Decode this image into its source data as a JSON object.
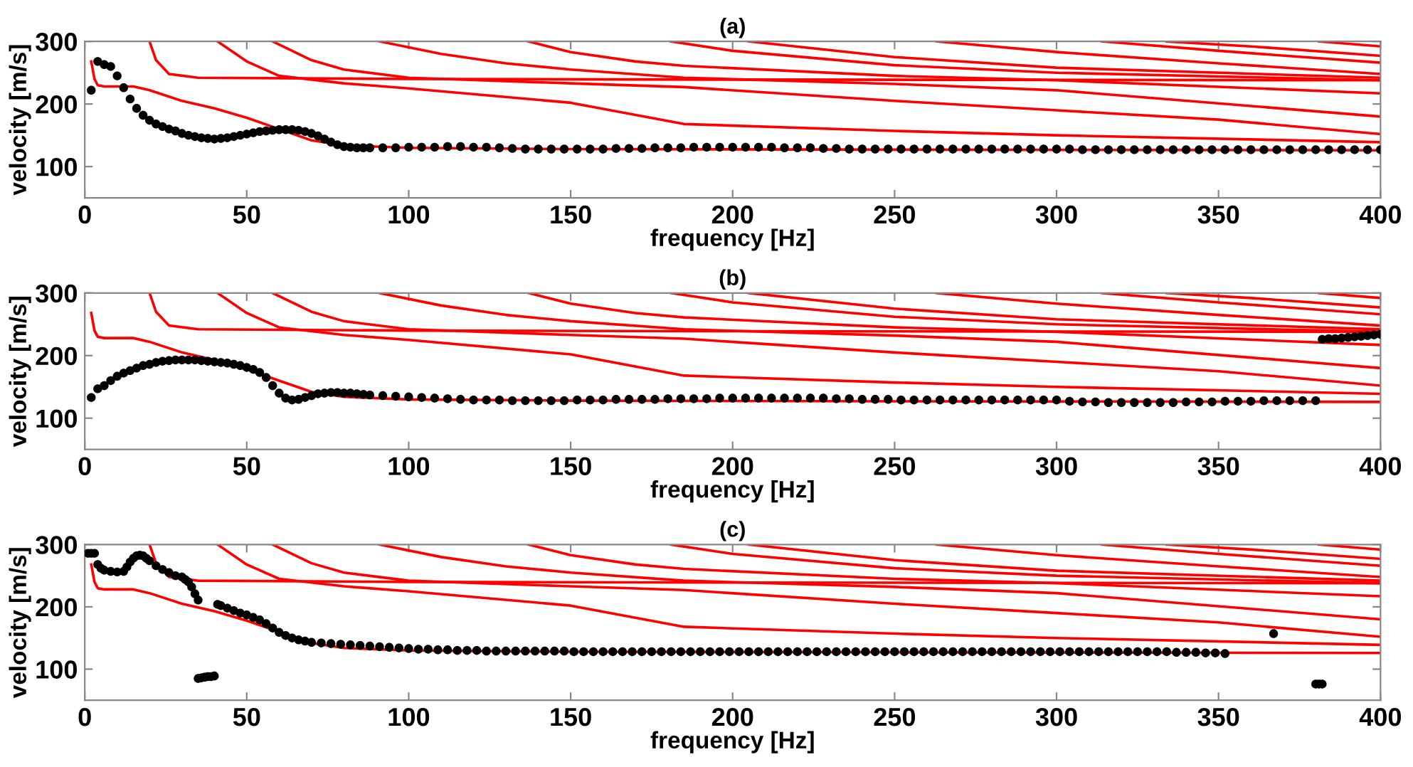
{
  "chart_data": [
    {
      "type": "line",
      "title": "(a)",
      "xlabel": "frequency [Hz]",
      "ylabel": "velocity [m/s]",
      "xlim": [
        0,
        400
      ],
      "ylim": [
        50,
        300
      ],
      "xticks": [
        0,
        50,
        100,
        150,
        200,
        250,
        300,
        350,
        400
      ],
      "yticks": [
        100,
        200,
        300
      ],
      "series": [
        {
          "color": "#ff0000",
          "x": [
            2,
            3,
            4,
            6,
            15,
            20,
            30,
            40,
            50,
            60,
            70,
            80,
            100,
            150,
            250,
            400
          ],
          "values": [
            268,
            240,
            230,
            228,
            228,
            222,
            205,
            193,
            178,
            160,
            142,
            134,
            130,
            128,
            127,
            126
          ]
        },
        {
          "color": "#ff0000",
          "x": [
            20,
            22,
            26,
            35,
            100,
            200,
            400
          ],
          "values": [
            300,
            270,
            248,
            242,
            240,
            239,
            238
          ]
        },
        {
          "color": "#ff0000",
          "x": [
            41,
            50,
            60,
            80,
            100,
            150,
            185,
            250,
            300,
            400
          ],
          "values": [
            300,
            268,
            245,
            233,
            225,
            202,
            168,
            157,
            150,
            139
          ]
        },
        {
          "color": "#ff0000",
          "x": [
            58,
            70,
            80,
            100,
            150,
            185,
            250,
            300,
            350,
            400
          ],
          "values": [
            300,
            270,
            255,
            242,
            233,
            227,
            205,
            190,
            175,
            152
          ]
        },
        {
          "color": "#ff0000",
          "x": [
            91,
            110,
            130,
            150,
            185,
            250,
            300,
            400
          ],
          "values": [
            300,
            280,
            265,
            255,
            242,
            232,
            222,
            180
          ]
        },
        {
          "color": "#ff0000",
          "x": [
            137,
            150,
            170,
            185,
            250,
            300,
            400
          ],
          "values": [
            300,
            283,
            268,
            261,
            245,
            238,
            217
          ]
        },
        {
          "color": "#ff0000",
          "x": [
            181,
            200,
            250,
            300,
            400
          ],
          "values": [
            300,
            285,
            262,
            250,
            238
          ]
        },
        {
          "color": "#ff0000",
          "x": [
            205,
            250,
            300,
            400
          ],
          "values": [
            300,
            275,
            258,
            242
          ]
        },
        {
          "color": "#ff0000",
          "x": [
            263,
            300,
            350,
            400
          ],
          "values": [
            300,
            283,
            265,
            248
          ]
        },
        {
          "color": "#ff0000",
          "x": [
            314,
            350,
            400
          ],
          "values": [
            300,
            285,
            266
          ]
        },
        {
          "color": "#ff0000",
          "x": [
            334,
            360,
            400
          ],
          "values": [
            300,
            292,
            277
          ]
        },
        {
          "color": "#ff0000",
          "x": [
            381,
            400
          ],
          "values": [
            300,
            292
          ]
        },
        {
          "type": "scatter",
          "color": "#000000",
          "marker": "circle",
          "x": [
            2,
            4,
            6,
            8,
            10,
            12,
            14,
            16,
            18,
            20,
            22,
            24,
            26,
            28,
            30,
            32,
            34,
            36,
            38,
            40,
            42,
            44,
            46,
            48,
            50,
            52,
            54,
            56,
            58,
            60,
            62,
            64,
            66,
            68,
            70,
            72,
            74,
            76,
            78,
            80,
            82,
            84,
            86,
            88,
            92,
            96,
            100,
            104,
            108,
            112,
            116,
            120,
            124,
            128,
            132,
            136,
            140,
            144,
            148,
            152,
            156,
            160,
            164,
            168,
            172,
            176,
            180,
            184,
            188,
            192,
            196,
            200,
            204,
            208,
            212,
            216,
            220,
            224,
            228,
            232,
            236,
            240,
            244,
            248,
            252,
            256,
            260,
            264,
            268,
            272,
            276,
            280,
            284,
            288,
            292,
            296,
            300,
            304,
            308,
            312,
            316,
            320,
            324,
            328,
            332,
            336,
            340,
            344,
            348,
            352,
            356,
            360,
            364,
            368,
            372,
            376,
            380,
            384,
            388,
            392,
            396,
            400
          ],
          "values": [
            222,
            268,
            263,
            260,
            245,
            226,
            208,
            193,
            182,
            174,
            168,
            164,
            160,
            157,
            153,
            150,
            148,
            146,
            145,
            144,
            145,
            146,
            148,
            150,
            152,
            154,
            156,
            157,
            158,
            159,
            159,
            159,
            158,
            156,
            153,
            149,
            144,
            139,
            135,
            132,
            131,
            130,
            130,
            130,
            130,
            130,
            131,
            131,
            131,
            132,
            132,
            131,
            131,
            130,
            129,
            128,
            128,
            128,
            128,
            128,
            128,
            128,
            129,
            129,
            129,
            130,
            130,
            130,
            131,
            131,
            131,
            131,
            131,
            131,
            131,
            130,
            130,
            130,
            129,
            129,
            128,
            128,
            128,
            128,
            128,
            128,
            128,
            128,
            128,
            128,
            128,
            128,
            128,
            128,
            128,
            128,
            128,
            128,
            127,
            127,
            127,
            127,
            127,
            127,
            127,
            127,
            127,
            127,
            127,
            127,
            127,
            127,
            127,
            127,
            127,
            127,
            127,
            127,
            127,
            127,
            127,
            127
          ]
        }
      ]
    },
    {
      "type": "line",
      "title": "(b)",
      "xlabel": "frequency [Hz]",
      "ylabel": "velocity [m/s]",
      "xlim": [
        0,
        400
      ],
      "ylim": [
        50,
        300
      ],
      "xticks": [
        0,
        50,
        100,
        150,
        200,
        250,
        300,
        350,
        400
      ],
      "yticks": [
        100,
        200,
        300
      ],
      "series": [
        {
          "color": "#ff0000",
          "x": [
            2,
            3,
            4,
            6,
            15,
            20,
            30,
            40,
            50,
            60,
            70,
            80,
            100,
            150,
            250,
            400
          ],
          "values": [
            268,
            240,
            230,
            228,
            228,
            222,
            205,
            193,
            178,
            160,
            142,
            134,
            130,
            128,
            127,
            126
          ]
        },
        {
          "color": "#ff0000",
          "x": [
            20,
            22,
            26,
            35,
            100,
            200,
            400
          ],
          "values": [
            300,
            270,
            248,
            242,
            240,
            239,
            238
          ]
        },
        {
          "color": "#ff0000",
          "x": [
            41,
            50,
            60,
            80,
            100,
            150,
            185,
            250,
            300,
            400
          ],
          "values": [
            300,
            268,
            245,
            233,
            225,
            202,
            168,
            157,
            150,
            139
          ]
        },
        {
          "color": "#ff0000",
          "x": [
            58,
            70,
            80,
            100,
            150,
            185,
            250,
            300,
            350,
            400
          ],
          "values": [
            300,
            270,
            255,
            242,
            233,
            227,
            205,
            190,
            175,
            152
          ]
        },
        {
          "color": "#ff0000",
          "x": [
            91,
            110,
            130,
            150,
            185,
            250,
            300,
            400
          ],
          "values": [
            300,
            280,
            265,
            255,
            242,
            232,
            222,
            180
          ]
        },
        {
          "color": "#ff0000",
          "x": [
            137,
            150,
            170,
            185,
            250,
            300,
            400
          ],
          "values": [
            300,
            283,
            268,
            261,
            245,
            238,
            217
          ]
        },
        {
          "color": "#ff0000",
          "x": [
            181,
            200,
            250,
            300,
            400
          ],
          "values": [
            300,
            285,
            262,
            250,
            238
          ]
        },
        {
          "color": "#ff0000",
          "x": [
            205,
            250,
            300,
            400
          ],
          "values": [
            300,
            275,
            258,
            242
          ]
        },
        {
          "color": "#ff0000",
          "x": [
            263,
            300,
            350,
            400
          ],
          "values": [
            300,
            283,
            265,
            248
          ]
        },
        {
          "color": "#ff0000",
          "x": [
            314,
            350,
            400
          ],
          "values": [
            300,
            285,
            266
          ]
        },
        {
          "color": "#ff0000",
          "x": [
            334,
            360,
            400
          ],
          "values": [
            300,
            292,
            277
          ]
        },
        {
          "color": "#ff0000",
          "x": [
            381,
            400
          ],
          "values": [
            300,
            292
          ]
        },
        {
          "type": "scatter",
          "color": "#000000",
          "marker": "circle",
          "x": [
            2,
            4,
            6,
            8,
            10,
            12,
            14,
            16,
            18,
            20,
            22,
            24,
            26,
            28,
            30,
            32,
            34,
            36,
            38,
            40,
            42,
            44,
            46,
            48,
            50,
            52,
            54,
            56,
            58,
            60,
            62,
            64,
            66,
            68,
            70,
            72,
            74,
            76,
            78,
            80,
            82,
            84,
            86,
            88,
            92,
            96,
            100,
            104,
            108,
            112,
            116,
            120,
            124,
            128,
            132,
            136,
            140,
            144,
            148,
            152,
            156,
            160,
            164,
            168,
            172,
            176,
            180,
            184,
            188,
            192,
            196,
            200,
            204,
            208,
            212,
            216,
            220,
            224,
            228,
            232,
            236,
            240,
            244,
            248,
            252,
            256,
            260,
            264,
            268,
            272,
            276,
            280,
            284,
            288,
            292,
            296,
            300,
            304,
            308,
            312,
            316,
            320,
            324,
            328,
            332,
            336,
            340,
            344,
            348,
            352,
            356,
            360,
            364,
            368,
            372,
            376,
            380,
            382,
            384,
            386,
            388,
            390,
            392,
            394,
            396,
            398,
            400
          ],
          "values": [
            133,
            147,
            152,
            160,
            167,
            172,
            176,
            180,
            184,
            186,
            189,
            191,
            192,
            193,
            193,
            193,
            193,
            192,
            191,
            190,
            189,
            188,
            186,
            184,
            181,
            178,
            173,
            165,
            152,
            140,
            132,
            129,
            130,
            133,
            136,
            139,
            140,
            141,
            141,
            140,
            140,
            139,
            138,
            137,
            136,
            135,
            134,
            133,
            132,
            131,
            130,
            129,
            129,
            129,
            128,
            128,
            128,
            128,
            128,
            129,
            129,
            129,
            130,
            130,
            130,
            130,
            131,
            131,
            131,
            131,
            132,
            132,
            132,
            132,
            132,
            132,
            132,
            132,
            132,
            131,
            131,
            130,
            130,
            130,
            129,
            129,
            129,
            129,
            129,
            129,
            129,
            129,
            129,
            129,
            129,
            129,
            129,
            127,
            126,
            126,
            125,
            125,
            125,
            125,
            125,
            125,
            126,
            126,
            126,
            127,
            127,
            127,
            128,
            128,
            128,
            128,
            128,
            226,
            227,
            227,
            228,
            229,
            230,
            231,
            232,
            233,
            234
          ]
        }
      ]
    },
    {
      "type": "line",
      "title": "(c)",
      "xlabel": "frequency [Hz]",
      "ylabel": "velocity [m/s]",
      "xlim": [
        0,
        400
      ],
      "ylim": [
        50,
        300
      ],
      "xticks": [
        0,
        50,
        100,
        150,
        200,
        250,
        300,
        350,
        400
      ],
      "yticks": [
        100,
        200,
        300
      ],
      "series": [
        {
          "color": "#ff0000",
          "x": [
            2,
            3,
            4,
            6,
            15,
            20,
            30,
            40,
            50,
            60,
            70,
            80,
            100,
            150,
            250,
            400
          ],
          "values": [
            268,
            240,
            230,
            228,
            228,
            222,
            205,
            193,
            178,
            160,
            142,
            134,
            130,
            128,
            127,
            126
          ]
        },
        {
          "color": "#ff0000",
          "x": [
            20,
            22,
            26,
            35,
            100,
            200,
            400
          ],
          "values": [
            300,
            270,
            248,
            242,
            240,
            239,
            238
          ]
        },
        {
          "color": "#ff0000",
          "x": [
            41,
            50,
            60,
            80,
            100,
            150,
            185,
            250,
            300,
            400
          ],
          "values": [
            300,
            268,
            245,
            233,
            225,
            202,
            168,
            157,
            150,
            139
          ]
        },
        {
          "color": "#ff0000",
          "x": [
            58,
            70,
            80,
            100,
            150,
            185,
            250,
            300,
            350,
            400
          ],
          "values": [
            300,
            270,
            255,
            242,
            233,
            227,
            205,
            190,
            175,
            152
          ]
        },
        {
          "color": "#ff0000",
          "x": [
            91,
            110,
            130,
            150,
            185,
            250,
            300,
            400
          ],
          "values": [
            300,
            280,
            265,
            255,
            242,
            232,
            222,
            180
          ]
        },
        {
          "color": "#ff0000",
          "x": [
            137,
            150,
            170,
            185,
            250,
            300,
            400
          ],
          "values": [
            300,
            283,
            268,
            261,
            245,
            238,
            217
          ]
        },
        {
          "color": "#ff0000",
          "x": [
            181,
            200,
            250,
            300,
            400
          ],
          "values": [
            300,
            285,
            262,
            250,
            238
          ]
        },
        {
          "color": "#ff0000",
          "x": [
            205,
            250,
            300,
            400
          ],
          "values": [
            300,
            275,
            258,
            242
          ]
        },
        {
          "color": "#ff0000",
          "x": [
            263,
            300,
            350,
            400
          ],
          "values": [
            300,
            283,
            265,
            248
          ]
        },
        {
          "color": "#ff0000",
          "x": [
            314,
            350,
            400
          ],
          "values": [
            300,
            285,
            266
          ]
        },
        {
          "color": "#ff0000",
          "x": [
            334,
            360,
            400
          ],
          "values": [
            300,
            292,
            277
          ]
        },
        {
          "color": "#ff0000",
          "x": [
            381,
            400
          ],
          "values": [
            300,
            292
          ]
        },
        {
          "type": "scatter",
          "color": "#000000",
          "marker": "circle",
          "x": [
            1,
            2,
            3,
            4,
            5,
            6,
            8,
            10,
            12,
            13,
            14,
            15,
            16,
            17,
            18,
            19,
            20,
            22,
            24,
            26,
            28,
            30,
            31,
            32,
            33,
            34,
            35,
            35,
            36,
            37,
            38,
            39,
            40,
            41,
            42,
            44,
            46,
            48,
            50,
            52,
            54,
            56,
            58,
            60,
            62,
            64,
            66,
            68,
            70,
            73,
            76,
            79,
            82,
            85,
            88,
            91,
            94,
            97,
            100,
            103,
            106,
            109,
            112,
            115,
            118,
            121,
            124,
            127,
            130,
            133,
            136,
            139,
            142,
            145,
            148,
            151,
            154,
            157,
            160,
            163,
            166,
            169,
            172,
            175,
            178,
            181,
            184,
            187,
            190,
            193,
            196,
            199,
            202,
            205,
            208,
            211,
            214,
            217,
            220,
            223,
            226,
            229,
            232,
            235,
            238,
            241,
            244,
            247,
            250,
            253,
            256,
            259,
            262,
            265,
            268,
            271,
            274,
            277,
            280,
            283,
            286,
            289,
            292,
            295,
            298,
            301,
            304,
            307,
            310,
            313,
            316,
            319,
            322,
            325,
            328,
            331,
            334,
            337,
            340,
            343,
            346,
            349,
            352,
            367,
            380,
            381,
            382
          ],
          "values": [
            286,
            286,
            286,
            268,
            262,
            259,
            257,
            256,
            257,
            264,
            272,
            278,
            282,
            283,
            282,
            278,
            274,
            266,
            260,
            255,
            250,
            248,
            244,
            240,
            232,
            221,
            211,
            85,
            86,
            87,
            88,
            88,
            89,
            204,
            202,
            198,
            194,
            190,
            187,
            183,
            179,
            173,
            166,
            159,
            154,
            150,
            147,
            145,
            143,
            142,
            141,
            140,
            139,
            138,
            137,
            136,
            135,
            134,
            133,
            132,
            132,
            131,
            131,
            130,
            130,
            130,
            129,
            129,
            129,
            129,
            129,
            129,
            129,
            129,
            129,
            128,
            128,
            128,
            128,
            128,
            128,
            128,
            128,
            128,
            128,
            128,
            128,
            128,
            128,
            128,
            128,
            128,
            128,
            128,
            128,
            128,
            128,
            128,
            128,
            128,
            128,
            128,
            128,
            128,
            128,
            128,
            128,
            128,
            128,
            128,
            128,
            128,
            128,
            128,
            128,
            128,
            128,
            128,
            128,
            128,
            128,
            128,
            128,
            128,
            128,
            128,
            128,
            128,
            128,
            128,
            128,
            128,
            128,
            128,
            128,
            128,
            128,
            127,
            127,
            127,
            126,
            126,
            125,
            157,
            76,
            76,
            76
          ]
        }
      ]
    }
  ]
}
